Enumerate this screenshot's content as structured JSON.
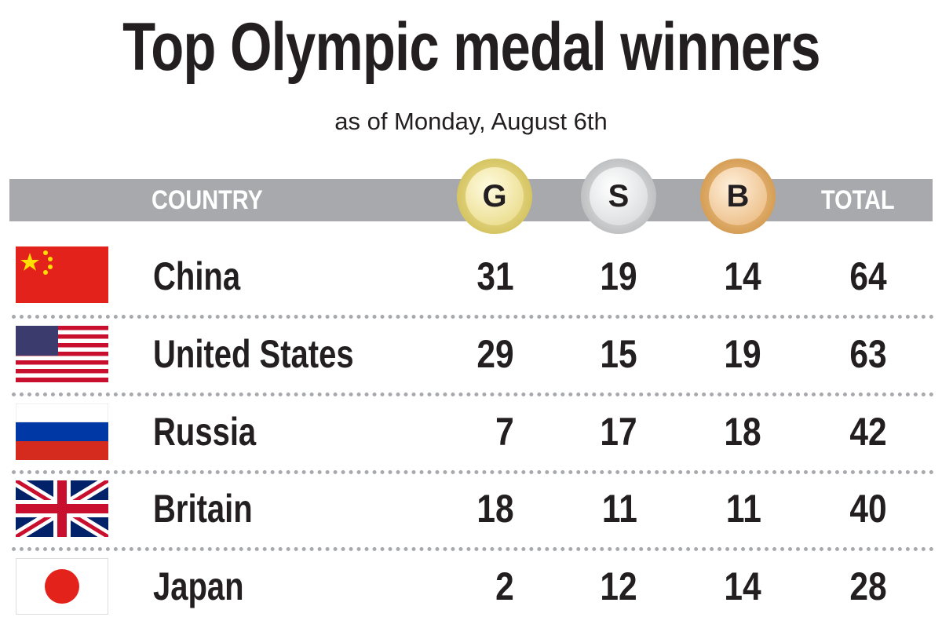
{
  "header": {
    "title": "Top Olympic medal winners",
    "subtitle": "as of Monday, August 6th"
  },
  "table": {
    "columns": [
      "COUNTRY",
      "G",
      "S",
      "B",
      "TOTAL"
    ],
    "rows": [
      [
        "China",
        31,
        19,
        14,
        64
      ],
      [
        "United States",
        29,
        15,
        19,
        63
      ],
      [
        "Russia",
        7,
        17,
        18,
        42
      ],
      [
        "Britain",
        18,
        11,
        11,
        40
      ],
      [
        "Japan",
        2,
        12,
        14,
        28
      ]
    ]
  }
}
